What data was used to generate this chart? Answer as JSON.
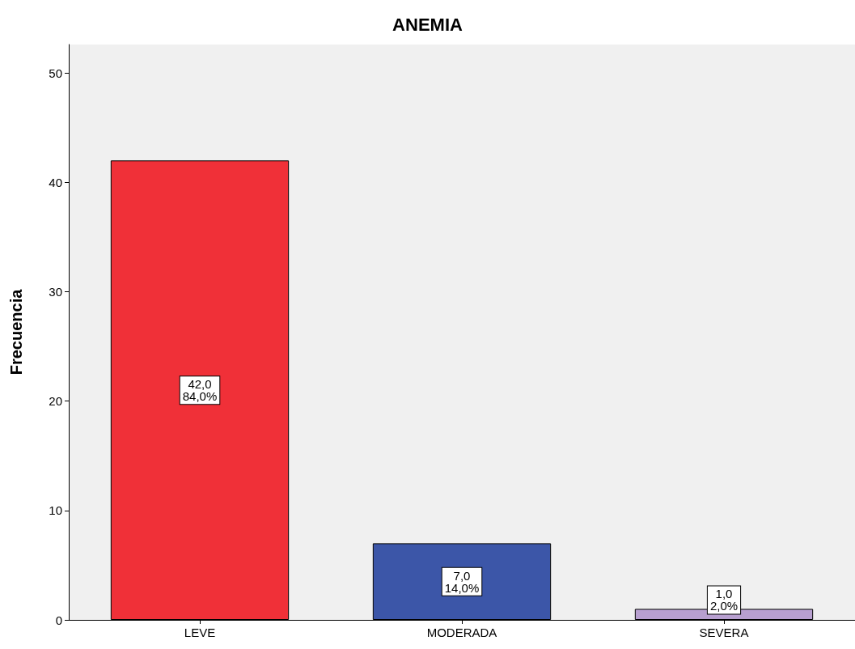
{
  "chart_data": {
    "type": "bar",
    "title": "ANEMIA",
    "ylabel": "Frecuencia",
    "categories": [
      "LEVE",
      "MODERADA",
      "SEVERA"
    ],
    "values": [
      42,
      7,
      1
    ],
    "colors": [
      "#f03038",
      "#3c56a8",
      "#b8a0d0"
    ],
    "value_labels": [
      "42,0\n84,0%",
      "7,0\n14,0%",
      "1,0\n2,0%"
    ],
    "ylim": [
      0,
      52.6
    ],
    "yticks": [
      0,
      10,
      20,
      30,
      40,
      50
    ],
    "grid": false
  }
}
